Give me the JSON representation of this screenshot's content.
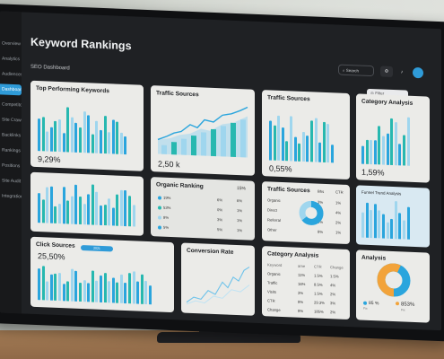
{
  "app_title": "Keyword Rankings",
  "subtitle": "SEO Dashboard",
  "search_label": "Search",
  "filter_label": "Filter",
  "sidebar": [
    "Overview",
    "Analytics",
    "Audiences",
    "Dashboard",
    "Competitors",
    "Site Crawl",
    "Backlinks",
    "Rankings",
    "Positions",
    "Site Audit",
    "Integrations"
  ],
  "sidebar_active_index": 3,
  "colors": {
    "blue": "#2aa5dd",
    "teal": "#27b8b0",
    "light_blue": "#9fd6ee",
    "orange": "#f2a33a",
    "accent": "#2f9bd8"
  },
  "cards": {
    "top_keywords": {
      "title": "Top Performing Keywords",
      "value": "9,29%"
    },
    "traffic1": {
      "title": "Traffic Sources",
      "value": "2,50 k"
    },
    "traffic2": {
      "title": "Traffic Sources",
      "value": "0,55%"
    },
    "category1": {
      "title": "Category Analysis",
      "value": "1,59%"
    },
    "organic": {
      "title": "Organic Ranking",
      "value": "15%",
      "rows": [
        [
          "19%",
          "6%",
          "6%"
        ],
        [
          "53%",
          "0%",
          "1%"
        ],
        [
          "8%",
          "3%",
          "1%"
        ],
        [
          "5%",
          "5%",
          "1%"
        ]
      ]
    },
    "traffic3": {
      "title": "Traffic Sources",
      "cols": [
        "Bhs",
        "CTR"
      ],
      "rows": [
        [
          "Organic",
          "3%",
          "1%"
        ],
        [
          "Direct",
          "3%",
          "4%"
        ],
        [
          "Referral",
          "3%",
          "2%"
        ],
        [
          "Other",
          "8%",
          "1%"
        ]
      ]
    },
    "funnel": {
      "title": "Funnel Trend Analysis"
    },
    "click": {
      "title": "Click Sources",
      "value": "25,50%",
      "tab": "2021"
    },
    "conversion": {
      "title": "Conversion Rate"
    },
    "category2": {
      "title": "Category Analysis",
      "cols": [
        "Keyword",
        "ame",
        "CTR",
        "Change"
      ],
      "rows": [
        [
          "Organic",
          "11%",
          "1.5%",
          "1.5%"
        ],
        [
          "Traffic",
          "16%",
          "8.5%",
          "4%"
        ],
        [
          "Visits",
          "3%",
          "1.5%",
          "2%"
        ],
        [
          "CTR",
          "8%",
          "29.3%",
          "3%"
        ],
        [
          "Change",
          "8%",
          "185%",
          "2%"
        ]
      ]
    },
    "analysis": {
      "title": "Analysis",
      "legend1": "85 %",
      "legend2": "853%",
      "legend_sub1": "Fix",
      "legend_sub2": "Fix"
    }
  }
}
